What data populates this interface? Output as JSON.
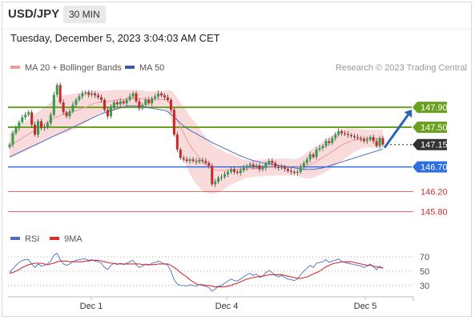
{
  "header": {
    "symbol": "USD/JPY",
    "timeframe": "30 MIN",
    "timestamp": "Tuesday, December 5, 2023 3:04:03 AM CET"
  },
  "legend": {
    "ma20_label": "MA 20 + Bollinger Bands",
    "ma50_label": "MA 50",
    "credit": "Research © 2023 Trading Central"
  },
  "rsi_legend": {
    "rsi_label": "RSI",
    "ma_label": "9MA"
  },
  "colors": {
    "up": "#2e9e4a",
    "down": "#c62828",
    "band": "#f8cfcf",
    "ma20": "#f19a9a",
    "ma50": "#4a6fc4",
    "resistance": "#6aa121",
    "pivot": "#2f6fe0",
    "support": "#e53935",
    "current": "#333333"
  },
  "chart_data": [
    {
      "type": "candlestick",
      "x_ticks": [
        "Dec 1",
        "Dec 4",
        "Dec 5"
      ],
      "ylim": [
        145.55,
        148.45
      ],
      "levels": [
        {
          "value": 147.9,
          "label": "147.90",
          "kind": "resistance"
        },
        {
          "value": 147.5,
          "label": "147.50",
          "kind": "resistance"
        },
        {
          "value": 147.15,
          "label": "147.15",
          "kind": "current"
        },
        {
          "value": 146.7,
          "label": "146.70",
          "kind": "pivot"
        },
        {
          "value": 146.2,
          "label": "146.20",
          "kind": "support"
        },
        {
          "value": 145.8,
          "label": "145.80",
          "kind": "support"
        }
      ],
      "closes": [
        147.15,
        147.38,
        147.48,
        147.6,
        147.7,
        147.75,
        147.8,
        147.55,
        147.35,
        147.62,
        147.48,
        147.5,
        147.58,
        147.75,
        148.15,
        148.35,
        148.0,
        147.8,
        147.72,
        147.82,
        147.95,
        148.05,
        148.12,
        148.18,
        148.2,
        148.15,
        148.18,
        148.14,
        148.1,
        148.05,
        147.85,
        147.72,
        147.9,
        148.0,
        147.96,
        148.02,
        147.98,
        148.05,
        148.12,
        148.18,
        148.02,
        147.88,
        147.95,
        148.05,
        147.98,
        148.08,
        148.12,
        148.18,
        148.14,
        148.1,
        148.05,
        147.85,
        147.35,
        147.05,
        146.88,
        146.85,
        146.82,
        146.85,
        146.82,
        146.8,
        146.84,
        146.82,
        146.78,
        146.72,
        146.35,
        146.4,
        146.48,
        146.5,
        146.55,
        146.6,
        146.65,
        146.6,
        146.58,
        146.63,
        146.68,
        146.72,
        146.75,
        146.7,
        146.73,
        146.65,
        146.68,
        146.77,
        146.82,
        146.78,
        146.7,
        146.68,
        146.7,
        146.66,
        146.62,
        146.6,
        146.58,
        146.6,
        146.7,
        146.78,
        146.85,
        146.95,
        146.9,
        147.05,
        147.08,
        147.12,
        147.22,
        147.18,
        147.28,
        147.35,
        147.42,
        147.38,
        147.36,
        147.34,
        147.32,
        147.3,
        147.28,
        147.26,
        147.22,
        147.25,
        147.3,
        147.22,
        147.12,
        147.28,
        147.15
      ],
      "ma20": [
        147.12,
        147.16,
        147.2,
        147.24,
        147.28,
        147.32,
        147.36,
        147.4,
        147.44,
        147.48,
        147.52,
        147.56,
        147.6,
        147.64,
        147.68,
        147.71,
        147.74,
        147.76,
        147.77,
        147.79,
        147.81,
        147.83,
        147.85,
        147.88,
        147.9,
        147.93,
        147.96,
        147.98,
        148.0,
        148.01,
        148.01,
        148.02,
        148.03,
        148.04,
        148.05,
        148.06,
        148.06,
        148.07,
        148.07,
        148.08,
        148.08,
        148.08,
        148.07,
        148.06,
        148.05,
        148.05,
        148.06,
        148.06,
        148.06,
        148.06,
        148.03,
        147.94,
        147.8,
        147.65,
        147.5,
        147.38,
        147.26,
        147.14,
        147.04,
        146.96,
        146.88,
        146.8,
        146.75,
        146.7,
        146.66,
        146.64,
        146.63,
        146.63,
        146.63,
        146.64,
        146.65,
        146.65,
        146.65,
        146.65,
        146.65,
        146.66,
        146.66,
        146.67,
        146.67,
        146.68,
        146.68,
        146.69,
        146.69,
        146.69,
        146.7,
        146.7,
        146.7,
        146.7,
        146.7,
        146.69,
        146.69,
        146.69,
        146.7,
        146.71,
        146.73,
        146.75,
        146.78,
        146.81,
        146.85,
        146.89,
        146.93,
        146.97,
        147.01,
        147.05,
        147.1,
        147.14,
        147.17,
        147.2,
        147.22,
        147.24,
        147.25,
        147.26,
        147.27,
        147.27,
        147.27,
        147.27,
        147.27,
        147.27,
        147.27
      ],
      "ma50": [
        146.9,
        146.93,
        146.96,
        146.99,
        147.02,
        147.05,
        147.08,
        147.11,
        147.14,
        147.17,
        147.2,
        147.23,
        147.26,
        147.29,
        147.32,
        147.35,
        147.38,
        147.41,
        147.44,
        147.47,
        147.5,
        147.53,
        147.56,
        147.59,
        147.62,
        147.65,
        147.68,
        147.71,
        147.74,
        147.77,
        147.79,
        147.81,
        147.83,
        147.85,
        147.87,
        147.89,
        147.91,
        147.92,
        147.93,
        147.93,
        147.93,
        147.92,
        147.91,
        147.9,
        147.89,
        147.88,
        147.87,
        147.86,
        147.85,
        147.84,
        147.81,
        147.76,
        147.7,
        147.64,
        147.58,
        147.53,
        147.48,
        147.44,
        147.4,
        147.37,
        147.33,
        147.3,
        147.26,
        147.23,
        147.19,
        147.16,
        147.13,
        147.1,
        147.07,
        147.04,
        147.01,
        146.98,
        146.95,
        146.92,
        146.9,
        146.87,
        146.85,
        146.83,
        146.81,
        146.8,
        146.78,
        146.77,
        146.76,
        146.75,
        146.74,
        146.73,
        146.72,
        146.71,
        146.7,
        146.69,
        146.68,
        146.67,
        146.66,
        146.65,
        146.65,
        146.65,
        146.65,
        146.66,
        146.67,
        146.68,
        146.7,
        146.72,
        146.74,
        146.76,
        146.78,
        146.8,
        146.82,
        146.84,
        146.86,
        146.88,
        146.9,
        146.92,
        146.94,
        146.96,
        146.98,
        147.0,
        147.02,
        147.04,
        147.06
      ],
      "band_half_width": [
        0.25,
        0.26,
        0.27,
        0.28,
        0.29,
        0.3,
        0.3,
        0.31,
        0.32,
        0.33,
        0.34,
        0.34,
        0.35,
        0.36,
        0.37,
        0.38,
        0.38,
        0.38,
        0.38,
        0.37,
        0.36,
        0.35,
        0.34,
        0.33,
        0.31,
        0.3,
        0.28,
        0.26,
        0.24,
        0.22,
        0.22,
        0.22,
        0.21,
        0.21,
        0.2,
        0.19,
        0.19,
        0.18,
        0.18,
        0.17,
        0.17,
        0.17,
        0.17,
        0.17,
        0.17,
        0.17,
        0.17,
        0.17,
        0.17,
        0.17,
        0.22,
        0.3,
        0.38,
        0.44,
        0.5,
        0.54,
        0.56,
        0.58,
        0.6,
        0.61,
        0.6,
        0.58,
        0.56,
        0.53,
        0.5,
        0.47,
        0.44,
        0.41,
        0.37,
        0.34,
        0.31,
        0.28,
        0.25,
        0.22,
        0.2,
        0.18,
        0.17,
        0.17,
        0.17,
        0.17,
        0.17,
        0.17,
        0.17,
        0.17,
        0.17,
        0.17,
        0.17,
        0.17,
        0.17,
        0.17,
        0.17,
        0.18,
        0.2,
        0.23,
        0.26,
        0.28,
        0.3,
        0.3,
        0.31,
        0.32,
        0.33,
        0.33,
        0.33,
        0.33,
        0.32,
        0.31,
        0.3,
        0.28,
        0.26,
        0.24,
        0.22,
        0.2,
        0.19,
        0.18,
        0.18,
        0.18,
        0.18,
        0.18,
        0.18
      ],
      "forecast_arrow": {
        "from": 147.15,
        "to": 147.9
      }
    },
    {
      "type": "line",
      "y_ticks": [
        70,
        50,
        30
      ],
      "ylim": [
        22,
        80
      ],
      "series": [
        {
          "name": "RSI",
          "values": [
            48,
            53,
            58,
            62,
            65,
            66,
            66,
            60,
            55,
            60,
            57,
            58,
            60,
            64,
            72,
            75,
            66,
            60,
            58,
            60,
            63,
            65,
            66,
            67,
            67,
            65,
            66,
            64,
            63,
            61,
            55,
            52,
            58,
            61,
            59,
            61,
            59,
            61,
            63,
            65,
            59,
            55,
            57,
            60,
            58,
            61,
            62,
            64,
            62,
            60,
            58,
            50,
            38,
            32,
            30,
            30,
            29,
            31,
            30,
            29,
            31,
            30,
            29,
            27,
            22,
            25,
            29,
            30,
            33,
            36,
            39,
            37,
            36,
            39,
            42,
            45,
            47,
            44,
            46,
            41,
            43,
            48,
            51,
            48,
            44,
            42,
            44,
            41,
            39,
            38,
            37,
            39,
            45,
            50,
            54,
            58,
            55,
            61,
            62,
            63,
            66,
            62,
            64,
            65,
            67,
            63,
            62,
            61,
            60,
            59,
            58,
            57,
            55,
            57,
            60,
            56,
            52,
            57,
            53
          ]
        },
        {
          "name": "9MA",
          "values": [
            47,
            48,
            50,
            52,
            55,
            57,
            59,
            60,
            61,
            61,
            61,
            60,
            59,
            60,
            61,
            63,
            64,
            64,
            64,
            63,
            63,
            63,
            63,
            63,
            64,
            64,
            65,
            65,
            65,
            64,
            63,
            62,
            61,
            61,
            60,
            60,
            60,
            60,
            60,
            60,
            60,
            60,
            59,
            59,
            59,
            59,
            59,
            60,
            60,
            60,
            60,
            58,
            55,
            52,
            48,
            45,
            42,
            38,
            35,
            32,
            31,
            31,
            30,
            30,
            29,
            28,
            28,
            28,
            28,
            29,
            30,
            32,
            33,
            35,
            37,
            39,
            40,
            41,
            42,
            43,
            43,
            44,
            45,
            45,
            45,
            45,
            45,
            44,
            43,
            42,
            41,
            40,
            40,
            41,
            42,
            44,
            46,
            48,
            50,
            53,
            56,
            58,
            60,
            61,
            62,
            63,
            63,
            63,
            63,
            62,
            61,
            60,
            59,
            58,
            58,
            57,
            56,
            55,
            55
          ]
        }
      ]
    }
  ]
}
